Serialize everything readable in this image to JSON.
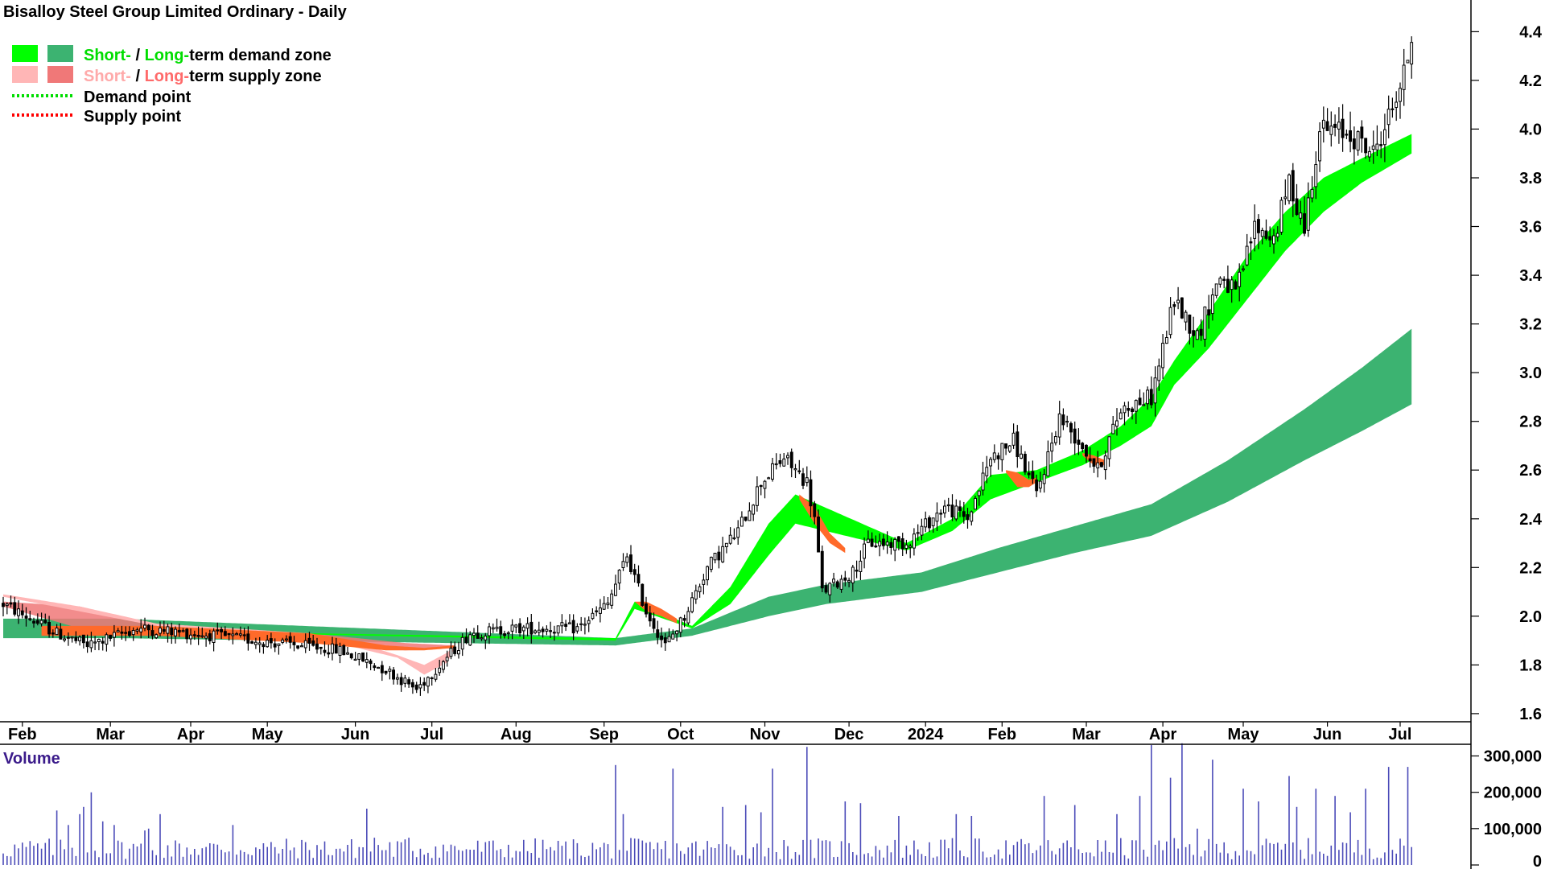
{
  "chart_data": {
    "type": "candlestick",
    "title": "Bisalloy Steel Group Limited Ordinary - Daily",
    "legend": [
      {
        "swatches": [
          "#00ff00",
          "#3cb371"
        ],
        "parts": [
          {
            "text": "Short-",
            "color": "#00dd00"
          },
          {
            "text": " / ",
            "color": "#000000"
          },
          {
            "text": "Long-",
            "color": "#00dd00"
          },
          {
            "text": "term demand zone",
            "color": "#000000"
          }
        ]
      },
      {
        "swatches": [
          "#ffb6b6",
          "#f07878"
        ],
        "parts": [
          {
            "text": "Short-",
            "color": "#ffaaaa"
          },
          {
            "text": " / ",
            "color": "#000000"
          },
          {
            "text": "Long-",
            "color": "#ff6a6a"
          },
          {
            "text": "term supply zone",
            "color": "#000000"
          }
        ]
      },
      {
        "line_color": "#00dd00",
        "text": "Demand point"
      },
      {
        "line_color": "#ff0000",
        "text": "Supply point"
      }
    ],
    "y_ticks": [
      "4.4",
      "4.2",
      "4.0",
      "3.8",
      "3.6",
      "3.4",
      "3.2",
      "3.0",
      "2.8",
      "2.6",
      "2.4",
      "2.2",
      "2.0",
      "1.8",
      "1.6"
    ],
    "y_values": [
      4.4,
      4.2,
      4.0,
      3.8,
      3.6,
      3.4,
      3.2,
      3.0,
      2.8,
      2.6,
      2.4,
      2.2,
      2.0,
      1.8,
      1.6
    ],
    "ylim": [
      1.57,
      4.53
    ],
    "x_ticks": [
      "Feb",
      "Mar",
      "Apr",
      "May",
      "Jun",
      "Jul",
      "Aug",
      "Sep",
      "Oct",
      "Nov",
      "Dec",
      "2024",
      "Feb",
      "Mar",
      "Apr",
      "May",
      "Jun",
      "Jul"
    ],
    "x_tick_days": [
      5,
      28,
      49,
      69,
      92,
      112,
      134,
      157,
      177,
      199,
      221,
      241,
      261,
      283,
      303,
      324,
      346,
      365
    ],
    "n_days": 373,
    "price_anchors": [
      [
        0,
        2.05
      ],
      [
        14,
        1.93
      ],
      [
        22,
        1.88
      ],
      [
        35,
        1.95
      ],
      [
        55,
        1.92
      ],
      [
        72,
        1.89
      ],
      [
        88,
        1.86
      ],
      [
        100,
        1.78
      ],
      [
        108,
        1.7
      ],
      [
        114,
        1.8
      ],
      [
        122,
        1.93
      ],
      [
        135,
        1.95
      ],
      [
        150,
        1.95
      ],
      [
        158,
        2.05
      ],
      [
        163,
        2.25
      ],
      [
        168,
        2.02
      ],
      [
        173,
        1.88
      ],
      [
        178,
        2.0
      ],
      [
        184,
        2.2
      ],
      [
        192,
        2.35
      ],
      [
        198,
        2.55
      ],
      [
        204,
        2.65
      ],
      [
        210,
        2.55
      ],
      [
        212,
        2.4
      ],
      [
        214,
        2.1
      ],
      [
        222,
        2.18
      ],
      [
        226,
        2.3
      ],
      [
        236,
        2.3
      ],
      [
        246,
        2.45
      ],
      [
        252,
        2.4
      ],
      [
        258,
        2.65
      ],
      [
        264,
        2.72
      ],
      [
        270,
        2.5
      ],
      [
        276,
        2.82
      ],
      [
        282,
        2.7
      ],
      [
        286,
        2.6
      ],
      [
        292,
        2.85
      ],
      [
        300,
        2.9
      ],
      [
        306,
        3.3
      ],
      [
        312,
        3.15
      ],
      [
        318,
        3.4
      ],
      [
        322,
        3.32
      ],
      [
        327,
        3.6
      ],
      [
        332,
        3.55
      ],
      [
        336,
        3.78
      ],
      [
        340,
        3.6
      ],
      [
        344,
        4.0
      ],
      [
        352,
        3.98
      ],
      [
        358,
        3.9
      ],
      [
        362,
        4.05
      ],
      [
        366,
        4.22
      ],
      [
        368,
        4.38
      ]
    ],
    "demand_short_anchors": [
      [
        0,
        1.95,
        1.95
      ],
      [
        160,
        1.9,
        1.91
      ],
      [
        165,
        2.03,
        2.06
      ],
      [
        180,
        1.95,
        1.96
      ],
      [
        190,
        2.05,
        2.12
      ],
      [
        200,
        2.25,
        2.38
      ],
      [
        207,
        2.38,
        2.5
      ],
      [
        236,
        2.27,
        2.3
      ],
      [
        248,
        2.35,
        2.4
      ],
      [
        258,
        2.48,
        2.58
      ],
      [
        270,
        2.55,
        2.6
      ],
      [
        282,
        2.62,
        2.68
      ],
      [
        292,
        2.7,
        2.78
      ],
      [
        300,
        2.78,
        2.9
      ],
      [
        306,
        2.95,
        3.05
      ],
      [
        315,
        3.1,
        3.25
      ],
      [
        325,
        3.3,
        3.48
      ],
      [
        335,
        3.5,
        3.66
      ],
      [
        345,
        3.66,
        3.8
      ],
      [
        355,
        3.78,
        3.88
      ],
      [
        368,
        3.9,
        3.98
      ]
    ],
    "demand_long_anchors": [
      [
        0,
        1.91,
        1.99
      ],
      [
        20,
        1.91,
        1.99
      ],
      [
        30,
        1.91,
        1.99
      ],
      [
        160,
        1.88,
        1.91
      ],
      [
        180,
        1.92,
        1.95
      ],
      [
        200,
        2.0,
        2.08
      ],
      [
        215,
        2.05,
        2.13
      ],
      [
        240,
        2.1,
        2.18
      ],
      [
        260,
        2.18,
        2.28
      ],
      [
        280,
        2.26,
        2.37
      ],
      [
        300,
        2.33,
        2.46
      ],
      [
        320,
        2.47,
        2.64
      ],
      [
        340,
        2.64,
        2.85
      ],
      [
        355,
        2.76,
        3.02
      ],
      [
        368,
        2.87,
        3.18
      ]
    ],
    "supply_short_anchors": [
      [
        0,
        2.08,
        2.09
      ],
      [
        20,
        2.02,
        2.04
      ],
      [
        40,
        1.96,
        1.97
      ],
      [
        80,
        1.92,
        1.93
      ],
      [
        95,
        1.86,
        1.88
      ],
      [
        103,
        1.83,
        1.84
      ],
      [
        110,
        1.76,
        1.8
      ],
      [
        116,
        1.81,
        1.85
      ],
      [
        118,
        1.87,
        1.88
      ]
    ],
    "supply_long_anchors": [
      [
        0,
        2.04,
        2.06
      ],
      [
        20,
        1.95,
        2.04
      ],
      [
        40,
        1.92,
        1.96
      ],
      [
        80,
        1.9,
        1.93
      ],
      [
        105,
        1.86,
        1.89
      ],
      [
        118,
        1.87,
        1.88
      ]
    ],
    "supply_patches": [
      [
        [
          165,
          2.06,
          2.06
        ],
        [
          168,
          2.02,
          2.06
        ],
        [
          172,
          2.0,
          2.03
        ],
        [
          176,
          1.97,
          1.99
        ]
      ],
      [
        [
          208,
          2.48,
          2.5
        ],
        [
          212,
          2.38,
          2.45
        ],
        [
          216,
          2.3,
          2.34
        ],
        [
          220,
          2.26,
          2.28
        ]
      ],
      [
        [
          262,
          2.59,
          2.6
        ],
        [
          265,
          2.53,
          2.59
        ],
        [
          268,
          2.53,
          2.56
        ],
        [
          270,
          2.55,
          2.57
        ]
      ],
      [
        [
          282,
          2.66,
          2.67
        ],
        [
          285,
          2.62,
          2.66
        ],
        [
          288,
          2.62,
          2.64
        ]
      ]
    ],
    "volume": {
      "label": "Volume",
      "y_ticks": [
        "300,000",
        "200,000",
        "100,000",
        "0"
      ],
      "y_values": [
        300000,
        200000,
        100000,
        0
      ],
      "ylim": [
        0,
        330000
      ],
      "typical": 45000,
      "spikes": [
        [
          14,
          150000
        ],
        [
          17,
          110000
        ],
        [
          20,
          140000
        ],
        [
          21,
          160000
        ],
        [
          23,
          200000
        ],
        [
          26,
          120000
        ],
        [
          29,
          110000
        ],
        [
          37,
          95000
        ],
        [
          38,
          100000
        ],
        [
          41,
          140000
        ],
        [
          60,
          110000
        ],
        [
          95,
          155000
        ],
        [
          97,
          75000
        ],
        [
          106,
          75000
        ],
        [
          160,
          275000
        ],
        [
          162,
          140000
        ],
        [
          175,
          265000
        ],
        [
          188,
          160000
        ],
        [
          194,
          165000
        ],
        [
          198,
          145000
        ],
        [
          201,
          265000
        ],
        [
          210,
          325000
        ],
        [
          220,
          175000
        ],
        [
          224,
          170000
        ],
        [
          234,
          135000
        ],
        [
          249,
          140000
        ],
        [
          253,
          135000
        ],
        [
          272,
          190000
        ],
        [
          280,
          165000
        ],
        [
          291,
          140000
        ],
        [
          297,
          190000
        ],
        [
          300,
          330000
        ],
        [
          305,
          240000
        ],
        [
          308,
          335000
        ],
        [
          312,
          100000
        ],
        [
          316,
          290000
        ],
        [
          324,
          210000
        ],
        [
          328,
          175000
        ],
        [
          336,
          245000
        ],
        [
          338,
          160000
        ],
        [
          343,
          210000
        ],
        [
          348,
          190000
        ],
        [
          352,
          145000
        ],
        [
          356,
          210000
        ],
        [
          362,
          270000
        ],
        [
          367,
          270000
        ]
      ]
    }
  }
}
